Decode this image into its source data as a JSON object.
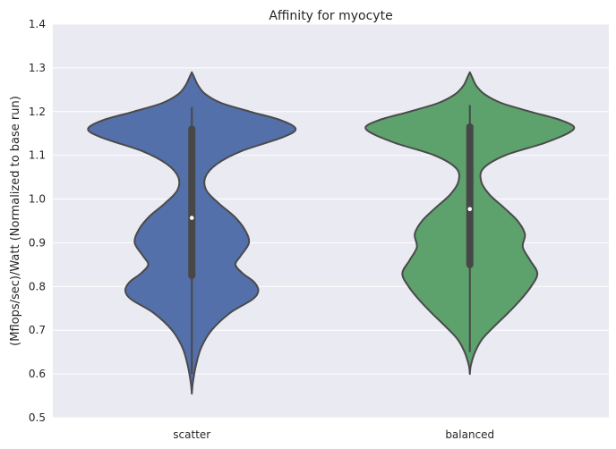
{
  "chart_data": {
    "type": "violin",
    "title": "Affinity for myocyte",
    "xlabel": "",
    "ylabel": "(Mflops/sec)/Watt (Normalized to base run)",
    "ylim": [
      0.5,
      1.4
    ],
    "yticks": [
      "0.5",
      "0.6",
      "0.7",
      "0.8",
      "0.9",
      "1.0",
      "1.1",
      "1.2",
      "1.3",
      "1.4"
    ],
    "grid": true,
    "categories": [
      "scatter",
      "balanced"
    ],
    "colors": [
      "#5470ab",
      "#5da16d"
    ],
    "series": [
      {
        "category": "scatter",
        "range": [
          0.555,
          1.29
        ],
        "whisker": [
          0.6,
          1.21
        ],
        "iqr": [
          0.825,
          1.16
        ],
        "median": 0.957,
        "density_profile": [
          [
            0.555,
            0.0
          ],
          [
            0.58,
            0.01
          ],
          [
            0.62,
            0.04
          ],
          [
            0.66,
            0.09
          ],
          [
            0.7,
            0.19
          ],
          [
            0.74,
            0.37
          ],
          [
            0.77,
            0.58
          ],
          [
            0.79,
            0.64
          ],
          [
            0.81,
            0.6
          ],
          [
            0.83,
            0.49
          ],
          [
            0.85,
            0.42
          ],
          [
            0.87,
            0.47
          ],
          [
            0.9,
            0.55
          ],
          [
            0.93,
            0.51
          ],
          [
            0.96,
            0.41
          ],
          [
            0.99,
            0.26
          ],
          [
            1.02,
            0.14
          ],
          [
            1.05,
            0.13
          ],
          [
            1.08,
            0.24
          ],
          [
            1.11,
            0.48
          ],
          [
            1.14,
            0.86
          ],
          [
            1.16,
            1.0
          ],
          [
            1.18,
            0.86
          ],
          [
            1.2,
            0.56
          ],
          [
            1.22,
            0.28
          ],
          [
            1.24,
            0.13
          ],
          [
            1.26,
            0.06
          ],
          [
            1.28,
            0.02
          ],
          [
            1.29,
            0.0
          ]
        ]
      },
      {
        "category": "balanced",
        "range": [
          0.6,
          1.29
        ],
        "whisker": [
          0.65,
          1.215
        ],
        "iqr": [
          0.85,
          1.165
        ],
        "median": 0.977,
        "density_profile": [
          [
            0.6,
            0.0
          ],
          [
            0.62,
            0.01
          ],
          [
            0.65,
            0.05
          ],
          [
            0.68,
            0.12
          ],
          [
            0.71,
            0.24
          ],
          [
            0.74,
            0.37
          ],
          [
            0.77,
            0.49
          ],
          [
            0.8,
            0.59
          ],
          [
            0.83,
            0.65
          ],
          [
            0.86,
            0.58
          ],
          [
            0.89,
            0.51
          ],
          [
            0.92,
            0.53
          ],
          [
            0.95,
            0.46
          ],
          [
            0.98,
            0.33
          ],
          [
            1.01,
            0.19
          ],
          [
            1.04,
            0.11
          ],
          [
            1.07,
            0.13
          ],
          [
            1.1,
            0.34
          ],
          [
            1.13,
            0.74
          ],
          [
            1.16,
            1.0
          ],
          [
            1.18,
            0.88
          ],
          [
            1.2,
            0.58
          ],
          [
            1.22,
            0.3
          ],
          [
            1.24,
            0.14
          ],
          [
            1.26,
            0.06
          ],
          [
            1.28,
            0.02
          ],
          [
            1.29,
            0.0
          ]
        ]
      }
    ]
  }
}
